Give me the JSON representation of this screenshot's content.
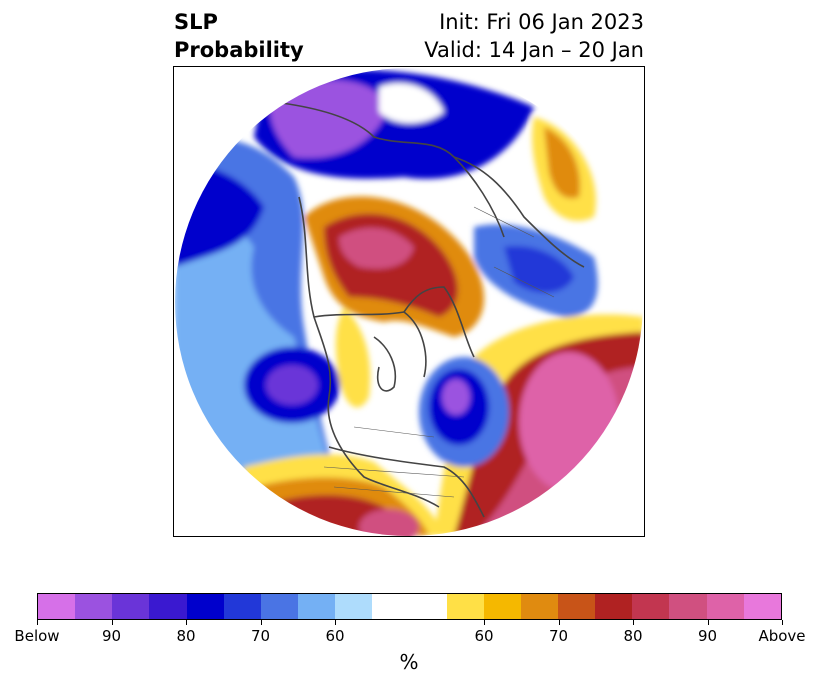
{
  "header": {
    "title_line1": "SLP",
    "title_line2": "Probability",
    "init_line": "Init: Fri 06 Jan 2023",
    "valid_line": "Valid: 14 Jan – 20 Jan"
  },
  "colorbar": {
    "colors": [
      "#d670e8",
      "#9b52e0",
      "#6a34d8",
      "#3a19d0",
      "#0000cc",
      "#2238d8",
      "#4a74e4",
      "#74b0f4",
      "#aedcfc",
      "#ffffff",
      "#ffffff",
      "#ffe046",
      "#f5b800",
      "#e08b10",
      "#c85418",
      "#b02222",
      "#c23650",
      "#d05080",
      "#de62a8",
      "#e878dc"
    ],
    "labels": [
      "Below",
      "90",
      "80",
      "70",
      "60",
      "60",
      "70",
      "80",
      "90",
      "Above"
    ],
    "unit": "%"
  },
  "map": {
    "projection": "north-polar-stereographic",
    "colors": {
      "blue_dark": "#0000cc",
      "blue_mid": "#4a74e4",
      "blue_light": "#aedcfc",
      "purple": "#6a34d8",
      "violet": "#9b52e0",
      "red": "#b02222",
      "pink": "#d05080",
      "orange": "#e08b10",
      "yellow": "#ffe046",
      "coast": "#444444"
    }
  }
}
